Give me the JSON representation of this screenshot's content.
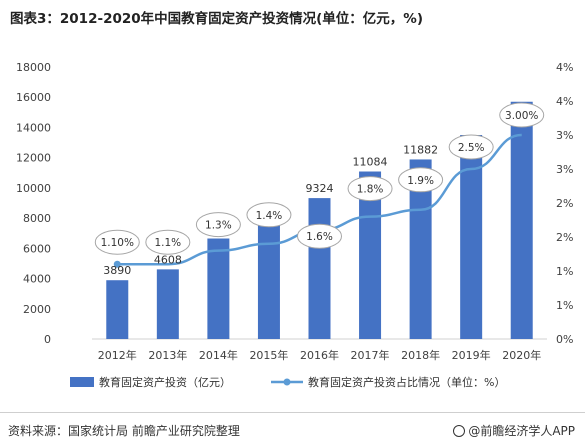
{
  "colors": {
    "bar": "#4472c4",
    "line": "#5b9bd5",
    "bubble_border": "#a6a6a6",
    "axis_text": "#404040",
    "grid": "#e5e5e5"
  },
  "chart_data": {
    "type": "bar",
    "title": "图表3：2012-2020年中国教育固定资产投资情况(单位：亿元，%)",
    "categories": [
      "2012年",
      "2013年",
      "2014年",
      "2015年",
      "2016年",
      "2017年",
      "2018年",
      "2019年",
      "2020年"
    ],
    "series": [
      {
        "name": "教育固定资产投资（亿元）",
        "type": "bar",
        "axis": "left",
        "values": [
          3890,
          4608,
          6650,
          7700,
          9324,
          11084,
          11882,
          13500,
          15700
        ]
      },
      {
        "name": "教育固定资产投资占比情况（单位：%）",
        "type": "line",
        "axis": "right",
        "values": [
          1.1,
          1.1,
          1.3,
          1.4,
          1.6,
          1.8,
          1.9,
          2.5,
          3.0
        ]
      }
    ],
    "bar_labels": [
      "3890",
      "4608",
      "",
      "",
      "9324",
      "11084",
      "11882",
      "",
      ""
    ],
    "line_labels": [
      "1.10%",
      "1.1%",
      "1.3%",
      "1.4%",
      "1.6%",
      "1.8%",
      "1.9%",
      "2.5%",
      "3.00%"
    ],
    "y_left": {
      "min": 0,
      "max": 18000,
      "step": 2000,
      "ticks": [
        "0",
        "2000",
        "4000",
        "6000",
        "8000",
        "10000",
        "12000",
        "14000",
        "16000",
        "18000"
      ]
    },
    "y_right": {
      "min": 0,
      "max": 4,
      "step": 0.5,
      "ticks": [
        "0%",
        "1%",
        "1%",
        "2%",
        "2%",
        "3%",
        "3%",
        "4%",
        "4%"
      ]
    },
    "grid": false,
    "legend_position": "bottom"
  },
  "footer": {
    "source": "资料来源：国家统计局 前瞻产业研究院整理",
    "brand": "@前瞻经济学人APP"
  }
}
